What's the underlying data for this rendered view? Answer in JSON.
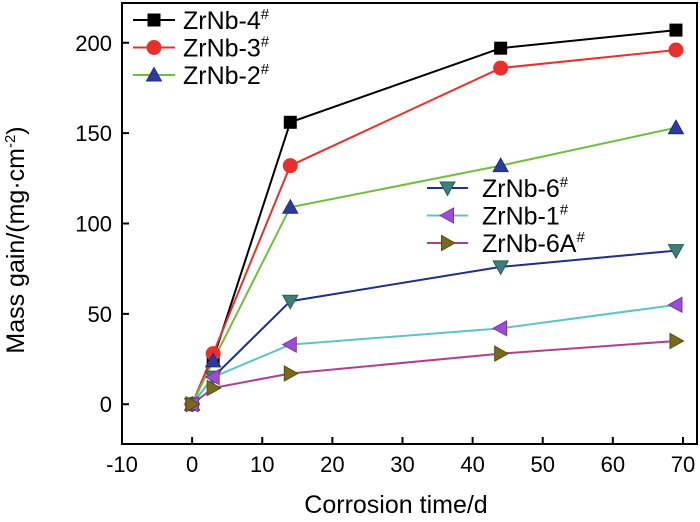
{
  "chart_data": {
    "type": "line",
    "xlabel": "Corrosion time/d",
    "ylabel": "Mass gain/(mg·cm",
    "ylabel_sup": "-2",
    "ylabel_tail": ")",
    "xlim": [
      -10,
      72
    ],
    "ylim": [
      -22,
      222
    ],
    "xticks": [
      -10,
      0,
      10,
      20,
      30,
      40,
      50,
      60,
      70
    ],
    "yticks": [
      0,
      50,
      100,
      150,
      200
    ],
    "x": [
      0,
      3,
      14,
      44,
      69
    ],
    "series": [
      {
        "name": "ZrNb-4",
        "sup": "#",
        "color": "#000000",
        "marker": "square",
        "values": [
          0,
          25,
          156,
          197,
          207
        ]
      },
      {
        "name": "ZrNb-3",
        "sup": "#",
        "color": "#e8302a",
        "marker": "circle",
        "values": [
          0,
          28,
          132,
          186,
          196
        ]
      },
      {
        "name": "ZrNb-2",
        "sup": "#",
        "color": "#6fbf3e",
        "marker": "triangle-up",
        "values": [
          0,
          24,
          109,
          132,
          153
        ]
      },
      {
        "name": "ZrNb-6",
        "sup": "#",
        "color": "#1f2f8a",
        "marker": "triangle-down",
        "values": [
          0,
          15,
          57,
          76,
          85
        ]
      },
      {
        "name": "ZrNb-1",
        "sup": "#",
        "color": "#5cc4c8",
        "marker": "triangle-left",
        "values": [
          0,
          15,
          33,
          42,
          55
        ]
      },
      {
        "name": "ZrNb-6A",
        "sup": "#",
        "color": "#b0408f",
        "marker": "triangle-right",
        "values": [
          0,
          9,
          17,
          28,
          35
        ]
      }
    ],
    "legend_groups": [
      {
        "placement": "top-left",
        "series": [
          0,
          1,
          2
        ]
      },
      {
        "placement": "middle-right",
        "series": [
          3,
          4,
          5
        ]
      }
    ],
    "marker_colors": {
      "ZrNb-4": {
        "fill": "#000000",
        "stroke": "#000000"
      },
      "ZrNb-3": {
        "fill": "#e8302a",
        "stroke": "#e8302a"
      },
      "ZrNb-2": {
        "fill": "#2d3a9a",
        "stroke": "#1f2f8a"
      },
      "ZrNb-6": {
        "fill": "#3f7f7a",
        "stroke": "#2a5a56"
      },
      "ZrNb-1": {
        "fill": "#9a4fd0",
        "stroke": "#7a35b0"
      },
      "ZrNb-6A": {
        "fill": "#7a6a1e",
        "stroke": "#5a4d10"
      }
    }
  }
}
